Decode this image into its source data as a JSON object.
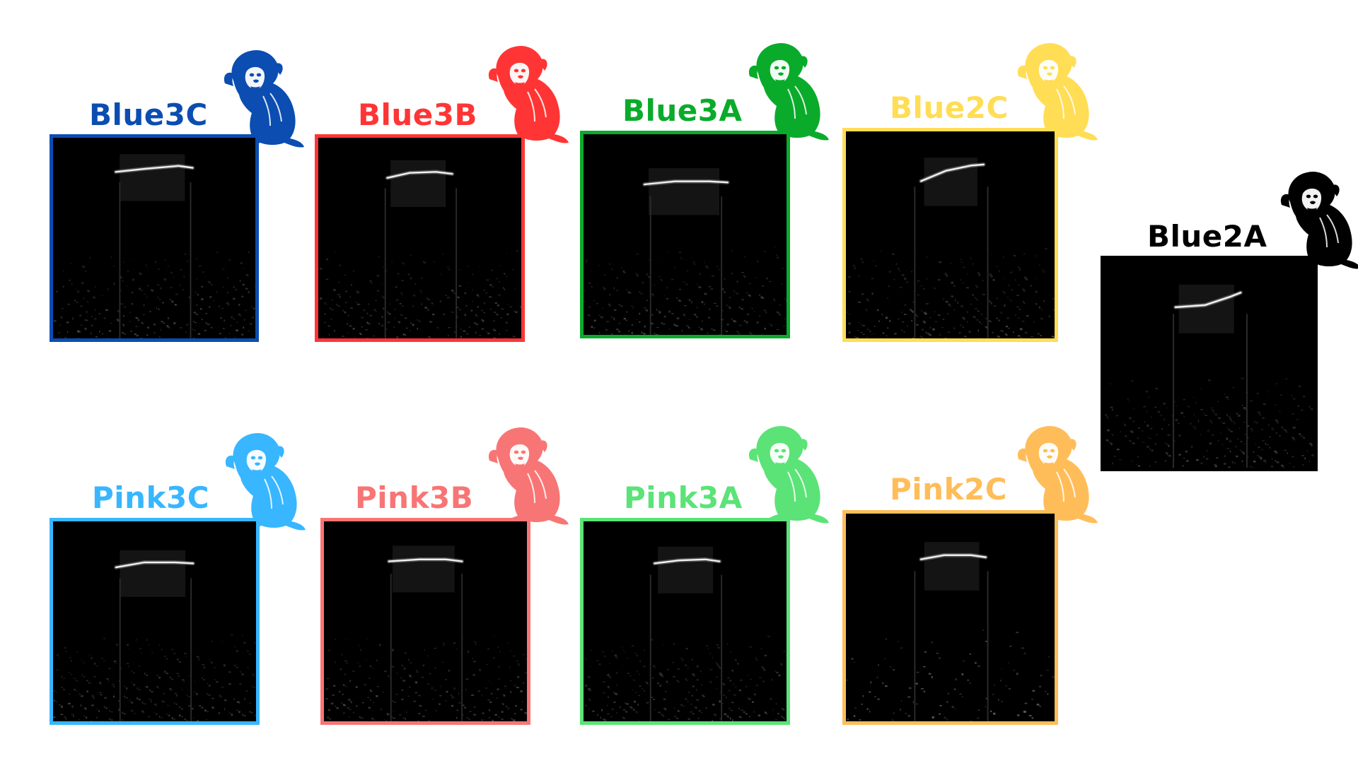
{
  "subjects": [
    {
      "label": "Blue3C",
      "color": "#0b4db1",
      "icon": "marmoset-icon",
      "contour": [
        [
          0.31,
          0.17
        ],
        [
          0.45,
          0.155
        ],
        [
          0.62,
          0.14
        ],
        [
          0.69,
          0.15
        ]
      ]
    },
    {
      "label": "Blue3B",
      "color": "#ff3535",
      "icon": "marmoset-icon",
      "contour": [
        [
          0.34,
          0.2
        ],
        [
          0.45,
          0.175
        ],
        [
          0.58,
          0.17
        ],
        [
          0.66,
          0.18
        ]
      ]
    },
    {
      "label": "Blue3A",
      "color": "#0aab2b",
      "icon": "marmoset-icon",
      "contour": [
        [
          0.3,
          0.25
        ],
        [
          0.45,
          0.235
        ],
        [
          0.62,
          0.235
        ],
        [
          0.71,
          0.24
        ]
      ]
    },
    {
      "label": "Blue2C",
      "color": "#ffdd55",
      "icon": "marmoset-icon",
      "contour": [
        [
          0.36,
          0.24
        ],
        [
          0.48,
          0.19
        ],
        [
          0.6,
          0.165
        ],
        [
          0.66,
          0.16
        ]
      ]
    },
    {
      "label": "Blue2A",
      "color": "#000000",
      "icon": "marmoset-icon",
      "contour": [
        [
          0.34,
          0.23
        ],
        [
          0.48,
          0.22
        ],
        [
          0.6,
          0.18
        ],
        [
          0.65,
          0.16
        ]
      ]
    },
    {
      "label": "Pink3C",
      "color": "#38b6ff",
      "icon": "marmoset-icon",
      "contour": [
        [
          0.31,
          0.23
        ],
        [
          0.45,
          0.205
        ],
        [
          0.6,
          0.205
        ],
        [
          0.69,
          0.21
        ]
      ]
    },
    {
      "label": "Pink3B",
      "color": "#f87575",
      "icon": "marmoset-icon",
      "contour": [
        [
          0.32,
          0.2
        ],
        [
          0.47,
          0.19
        ],
        [
          0.6,
          0.19
        ],
        [
          0.68,
          0.2
        ]
      ]
    },
    {
      "label": "Pink3A",
      "color": "#5be377",
      "icon": "marmoset-icon",
      "contour": [
        [
          0.35,
          0.21
        ],
        [
          0.47,
          0.195
        ],
        [
          0.6,
          0.19
        ],
        [
          0.67,
          0.2
        ]
      ]
    },
    {
      "label": "Pink2C",
      "color": "#ffbd59",
      "icon": "marmoset-icon",
      "contour": [
        [
          0.36,
          0.22
        ],
        [
          0.47,
          0.2
        ],
        [
          0.6,
          0.2
        ],
        [
          0.67,
          0.21
        ]
      ]
    }
  ]
}
